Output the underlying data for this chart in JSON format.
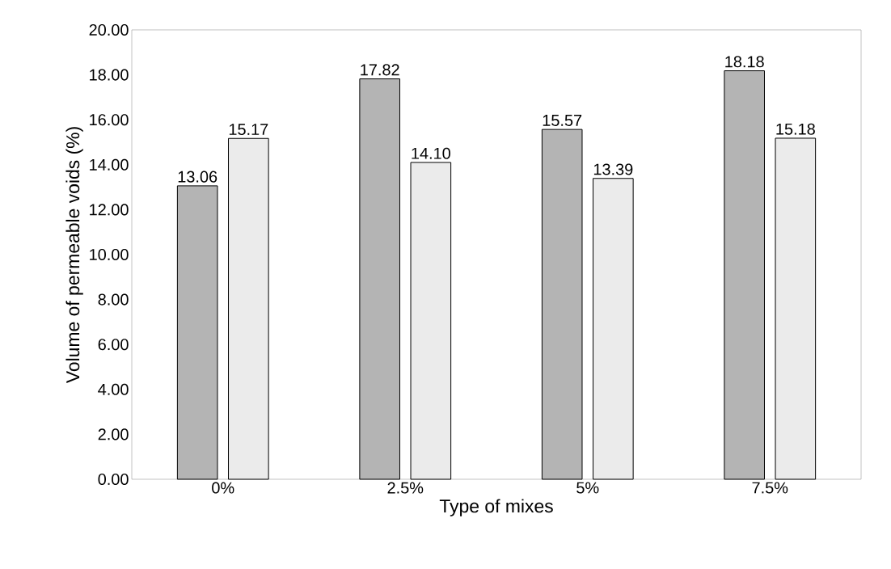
{
  "chart_data": {
    "type": "bar",
    "xlabel": "Type of mixes",
    "ylabel": "Volume of  permeable voids (%)",
    "categories": [
      "0%",
      "2.5%",
      "5%",
      "7.5%"
    ],
    "series": [
      {
        "color": "#b4b4b4",
        "values": [
          13.06,
          17.82,
          15.57,
          18.18
        ],
        "value_labels": [
          "13.06",
          "17.82",
          "15.57",
          "18.18"
        ]
      },
      {
        "color": "#ebebeb",
        "values": [
          15.17,
          14.1,
          13.39,
          15.18
        ],
        "value_labels": [
          "15.17",
          "14.10",
          "13.39",
          "15.18"
        ]
      }
    ],
    "ylim": [
      0,
      20
    ],
    "yticks": [
      {
        "value": 0,
        "label": "0.00"
      },
      {
        "value": 2,
        "label": "2.00"
      },
      {
        "value": 4,
        "label": "4.00"
      },
      {
        "value": 6,
        "label": "6.00"
      },
      {
        "value": 8,
        "label": "8.00"
      },
      {
        "value": 10,
        "label": "10.00"
      },
      {
        "value": 12,
        "label": "12.00"
      },
      {
        "value": 14,
        "label": "14.00"
      },
      {
        "value": 16,
        "label": "16.00"
      },
      {
        "value": 18,
        "label": "18.00"
      },
      {
        "value": 20,
        "label": "20.00"
      }
    ]
  }
}
